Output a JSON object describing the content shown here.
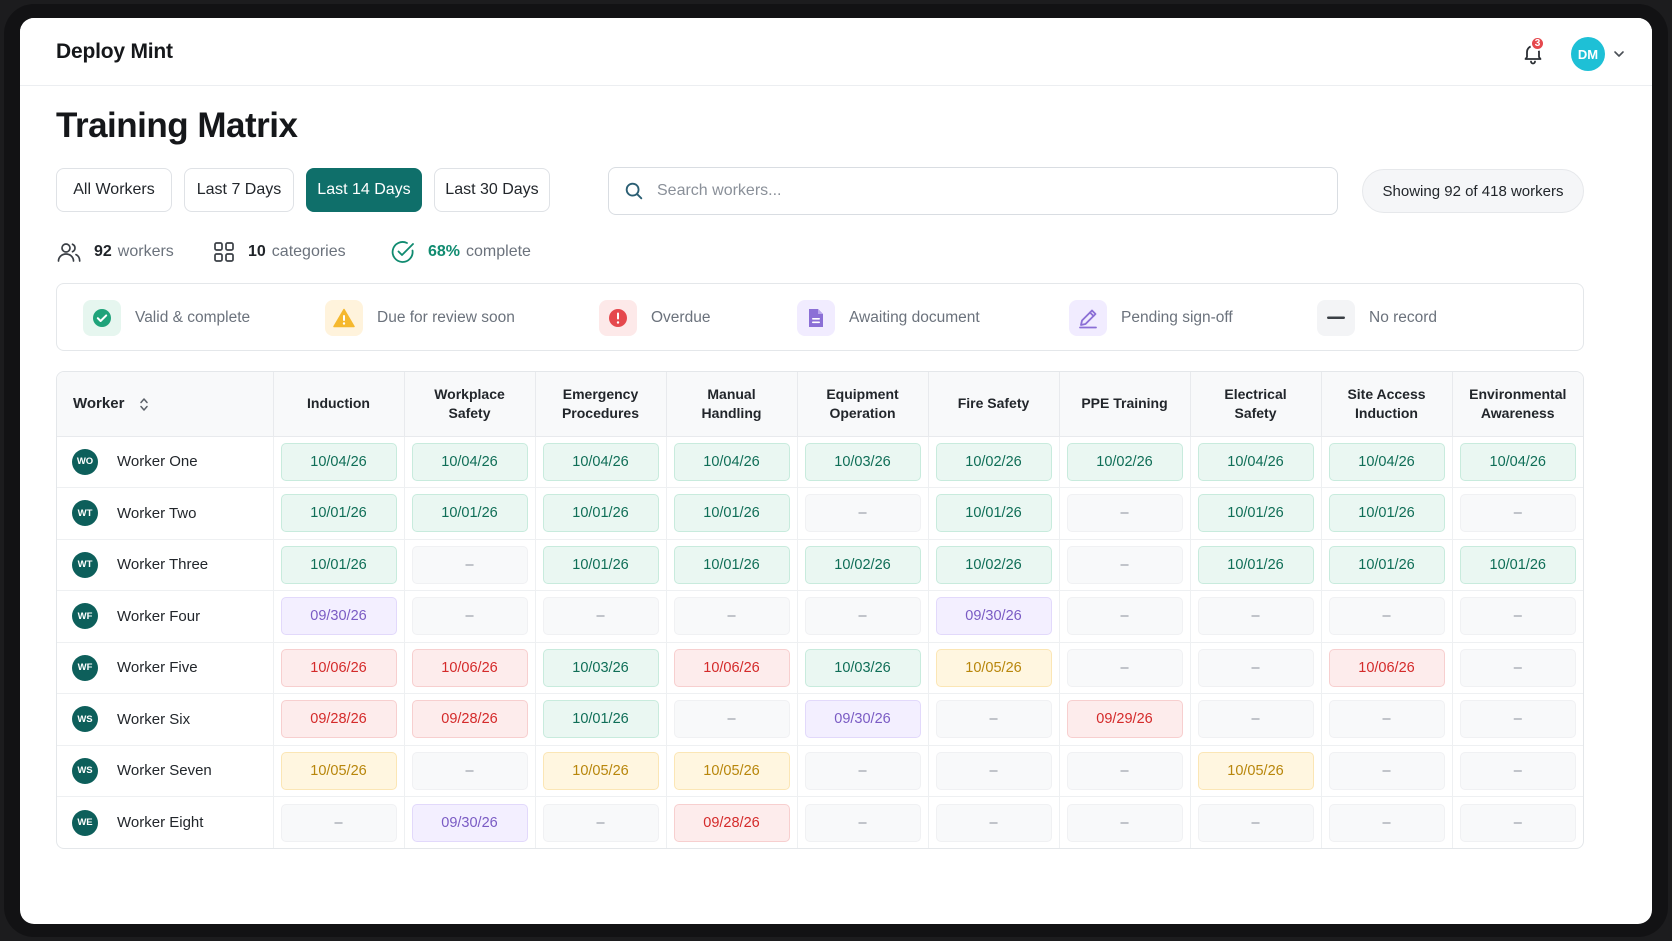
{
  "app": {
    "brand": "Deploy Mint"
  },
  "header": {
    "notification_count": "3",
    "user_initials": "DM"
  },
  "page": {
    "title": "Training Matrix"
  },
  "filters": [
    {
      "label": "All Workers",
      "active": false
    },
    {
      "label": "Last 7 Days",
      "active": false
    },
    {
      "label": "Last 14 Days",
      "active": true
    },
    {
      "label": "Last 30 Days",
      "active": false
    }
  ],
  "search": {
    "placeholder": "Search workers...",
    "value": ""
  },
  "showing": {
    "text": "Showing 92 of 418 workers"
  },
  "stats": {
    "workers_count": "92",
    "workers_label": "workers",
    "categories_count": "10",
    "categories_label": "categories",
    "complete_pct": "68%",
    "complete_label": "complete"
  },
  "legend": [
    {
      "key": "valid",
      "label": "Valid & complete",
      "icon": "check-circle-icon",
      "color": "#1fa37a"
    },
    {
      "key": "review",
      "label": "Due for review soon",
      "icon": "warning-triangle-icon",
      "color": "#f5b82e"
    },
    {
      "key": "overdue",
      "label": "Overdue",
      "icon": "exclamation-circle-icon",
      "color": "#e5484d"
    },
    {
      "key": "doc",
      "label": "Awaiting document",
      "icon": "document-icon",
      "color": "#8b6fd6"
    },
    {
      "key": "pending",
      "label": "Pending sign-off",
      "icon": "pen-icon",
      "color": "#8b6fd6"
    },
    {
      "key": "none",
      "label": "No record",
      "icon": "dash-icon",
      "color": "#3a3f45"
    }
  ],
  "table": {
    "worker_header": "Worker",
    "columns": [
      [
        "Induction"
      ],
      [
        "Workplace",
        "Safety"
      ],
      [
        "Emergency",
        "Procedures"
      ],
      [
        "Manual",
        "Handling"
      ],
      [
        "Equipment",
        "Operation"
      ],
      [
        "Fire Safety"
      ],
      [
        "PPE Training"
      ],
      [
        "Electrical",
        "Safety"
      ],
      [
        "Site Access",
        "Induction"
      ],
      [
        "Environmental",
        "Awareness"
      ]
    ],
    "rows": [
      {
        "initials": "WO",
        "name": "Worker One",
        "cells": [
          {
            "s": "valid",
            "v": "10/04/26"
          },
          {
            "s": "valid",
            "v": "10/04/26"
          },
          {
            "s": "valid",
            "v": "10/04/26"
          },
          {
            "s": "valid",
            "v": "10/04/26"
          },
          {
            "s": "valid",
            "v": "10/03/26"
          },
          {
            "s": "valid",
            "v": "10/02/26"
          },
          {
            "s": "valid",
            "v": "10/02/26"
          },
          {
            "s": "valid",
            "v": "10/04/26"
          },
          {
            "s": "valid",
            "v": "10/04/26"
          },
          {
            "s": "valid",
            "v": "10/04/26"
          }
        ]
      },
      {
        "initials": "WT",
        "name": "Worker Two",
        "cells": [
          {
            "s": "valid",
            "v": "10/01/26"
          },
          {
            "s": "valid",
            "v": "10/01/26"
          },
          {
            "s": "valid",
            "v": "10/01/26"
          },
          {
            "s": "valid",
            "v": "10/01/26"
          },
          {
            "s": "none",
            "v": "–"
          },
          {
            "s": "valid",
            "v": "10/01/26"
          },
          {
            "s": "none",
            "v": "–"
          },
          {
            "s": "valid",
            "v": "10/01/26"
          },
          {
            "s": "valid",
            "v": "10/01/26"
          },
          {
            "s": "none",
            "v": "–"
          }
        ]
      },
      {
        "initials": "WT",
        "name": "Worker Three",
        "cells": [
          {
            "s": "valid",
            "v": "10/01/26"
          },
          {
            "s": "none",
            "v": "–"
          },
          {
            "s": "valid",
            "v": "10/01/26"
          },
          {
            "s": "valid",
            "v": "10/01/26"
          },
          {
            "s": "valid",
            "v": "10/02/26"
          },
          {
            "s": "valid",
            "v": "10/02/26"
          },
          {
            "s": "none",
            "v": "–"
          },
          {
            "s": "valid",
            "v": "10/01/26"
          },
          {
            "s": "valid",
            "v": "10/01/26"
          },
          {
            "s": "valid",
            "v": "10/01/26"
          }
        ]
      },
      {
        "initials": "WF",
        "name": "Worker Four",
        "cells": [
          {
            "s": "doc",
            "v": "09/30/26"
          },
          {
            "s": "none",
            "v": "–"
          },
          {
            "s": "none",
            "v": "–"
          },
          {
            "s": "none",
            "v": "–"
          },
          {
            "s": "none",
            "v": "–"
          },
          {
            "s": "doc",
            "v": "09/30/26"
          },
          {
            "s": "none",
            "v": "–"
          },
          {
            "s": "none",
            "v": "–"
          },
          {
            "s": "none",
            "v": "–"
          },
          {
            "s": "none",
            "v": "–"
          }
        ]
      },
      {
        "initials": "WF",
        "name": "Worker Five",
        "cells": [
          {
            "s": "overdue",
            "v": "10/06/26"
          },
          {
            "s": "overdue",
            "v": "10/06/26"
          },
          {
            "s": "valid",
            "v": "10/03/26"
          },
          {
            "s": "overdue",
            "v": "10/06/26"
          },
          {
            "s": "valid",
            "v": "10/03/26"
          },
          {
            "s": "review",
            "v": "10/05/26"
          },
          {
            "s": "none",
            "v": "–"
          },
          {
            "s": "none",
            "v": "–"
          },
          {
            "s": "overdue",
            "v": "10/06/26"
          },
          {
            "s": "none",
            "v": "–"
          }
        ]
      },
      {
        "initials": "WS",
        "name": "Worker Six",
        "cells": [
          {
            "s": "overdue",
            "v": "09/28/26"
          },
          {
            "s": "overdue",
            "v": "09/28/26"
          },
          {
            "s": "valid",
            "v": "10/01/26"
          },
          {
            "s": "none",
            "v": "–"
          },
          {
            "s": "doc",
            "v": "09/30/26"
          },
          {
            "s": "none",
            "v": "–"
          },
          {
            "s": "overdue",
            "v": "09/29/26"
          },
          {
            "s": "none",
            "v": "–"
          },
          {
            "s": "none",
            "v": "–"
          },
          {
            "s": "none",
            "v": "–"
          }
        ]
      },
      {
        "initials": "WS",
        "name": "Worker Seven",
        "cells": [
          {
            "s": "review",
            "v": "10/05/26"
          },
          {
            "s": "none",
            "v": "–"
          },
          {
            "s": "review",
            "v": "10/05/26"
          },
          {
            "s": "review",
            "v": "10/05/26"
          },
          {
            "s": "none",
            "v": "–"
          },
          {
            "s": "none",
            "v": "–"
          },
          {
            "s": "none",
            "v": "–"
          },
          {
            "s": "review",
            "v": "10/05/26"
          },
          {
            "s": "none",
            "v": "–"
          },
          {
            "s": "none",
            "v": "–"
          }
        ]
      },
      {
        "initials": "WE",
        "name": "Worker Eight",
        "cells": [
          {
            "s": "none",
            "v": "–"
          },
          {
            "s": "doc",
            "v": "09/30/26"
          },
          {
            "s": "none",
            "v": "–"
          },
          {
            "s": "overdue",
            "v": "09/28/26"
          },
          {
            "s": "none",
            "v": "–"
          },
          {
            "s": "none",
            "v": "–"
          },
          {
            "s": "none",
            "v": "–"
          },
          {
            "s": "none",
            "v": "–"
          },
          {
            "s": "none",
            "v": "–"
          },
          {
            "s": "none",
            "v": "–"
          }
        ]
      }
    ]
  },
  "colors": {
    "accent": "#0f6f6a",
    "worker_avatar": "#0d5f5b",
    "user_avatar": "#1ec0d6",
    "badge": "#e5484d"
  }
}
